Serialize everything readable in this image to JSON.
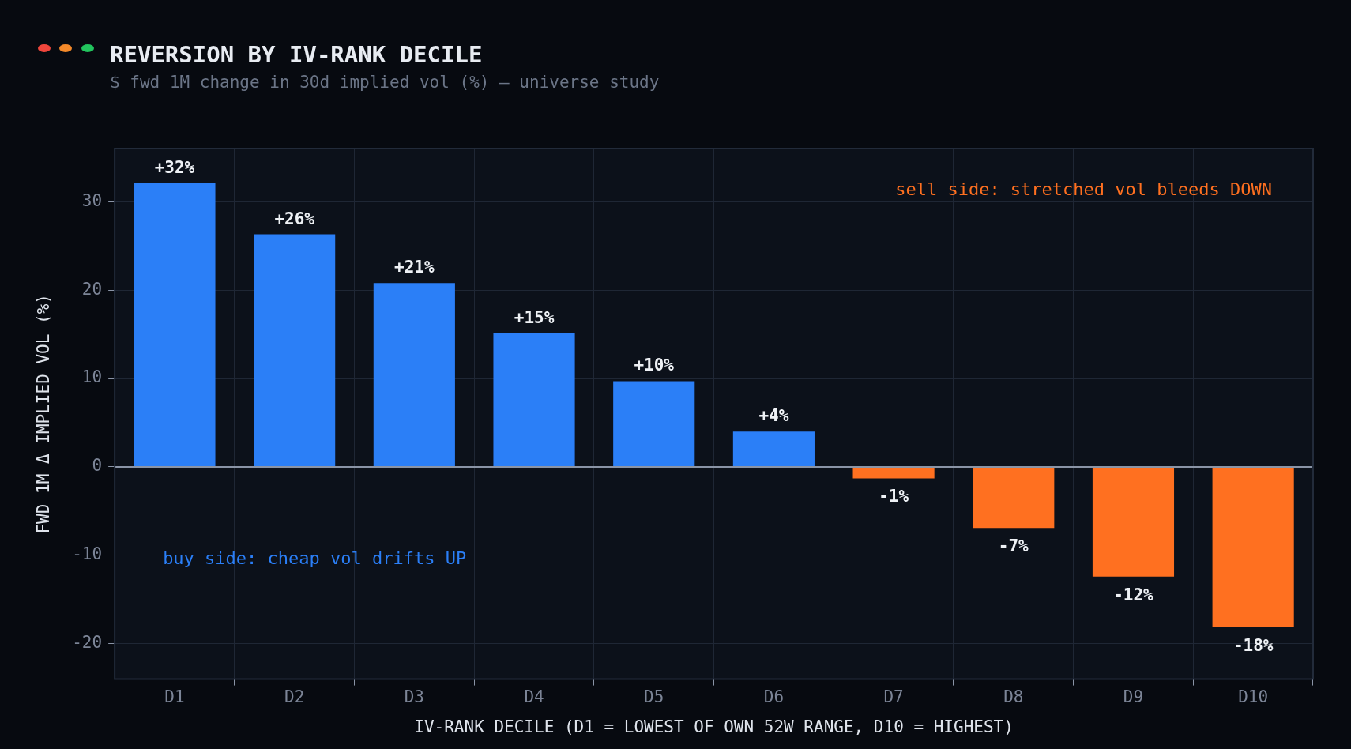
{
  "chart_data": {
    "type": "bar",
    "title": "REVERSION BY IV-RANK DECILE",
    "subtitle": "$ fwd 1M change in 30d implied vol (%) — universe study",
    "xlabel": "IV-RANK DECILE (D1 = LOWEST OF OWN 52W RANGE, D10 = HIGHEST)",
    "ylabel": "FWD 1M Δ IMPLIED VOL (%)",
    "categories": [
      "D1",
      "D2",
      "D3",
      "D4",
      "D5",
      "D6",
      "D7",
      "D8",
      "D9",
      "D10"
    ],
    "values": [
      32.1,
      26.3,
      20.8,
      15.1,
      9.7,
      4.0,
      -1.3,
      -6.9,
      -12.4,
      -18.1
    ],
    "value_labels": [
      "+32%",
      "+26%",
      "+21%",
      "+15%",
      "+10%",
      "+4%",
      "-1%",
      "-7%",
      "-12%",
      "-18%"
    ],
    "colors": [
      "#2b7ff7",
      "#2b7ff7",
      "#2b7ff7",
      "#2b7ff7",
      "#2b7ff7",
      "#2b7ff7",
      "#ff7020",
      "#ff7020",
      "#ff7020",
      "#ff7020"
    ],
    "ylim": [
      -24,
      36
    ],
    "yticks": [
      -20,
      -10,
      0,
      10,
      20,
      30
    ],
    "grid": true,
    "annotations": [
      "sell side: stretched vol bleeds DOWN",
      "buy side: cheap vol drifts UP"
    ]
  }
}
